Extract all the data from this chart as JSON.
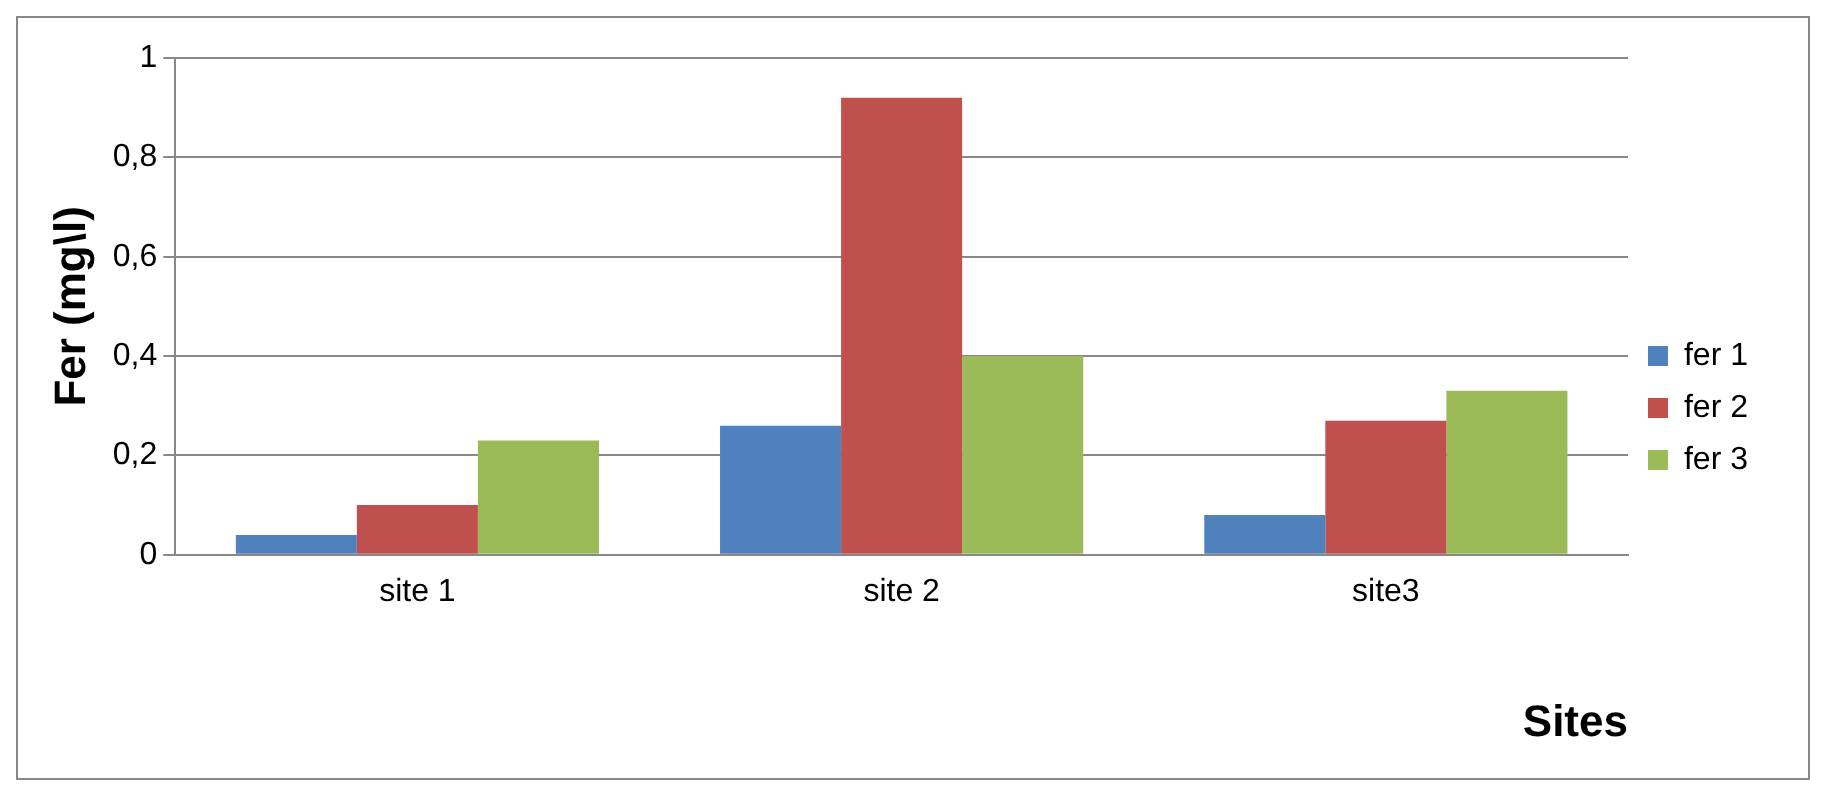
{
  "chart_data": {
    "type": "bar",
    "xlabel": "Sites",
    "ylabel": "Fer (mg\\l)",
    "categories": [
      "site 1",
      "site 2",
      "site3"
    ],
    "series": [
      {
        "name": "fer 1",
        "color": "#4f81bd",
        "values": [
          0.04,
          0.26,
          0.08
        ]
      },
      {
        "name": "fer 2",
        "color": "#c0504d",
        "values": [
          0.1,
          0.92,
          0.27
        ]
      },
      {
        "name": "fer 3",
        "color": "#9bbb59",
        "values": [
          0.23,
          0.4,
          0.33
        ]
      }
    ],
    "ylim": [
      0,
      1
    ],
    "yticks": [
      0,
      {
        "value": 0.2,
        "label": "0,2"
      },
      {
        "value": 0.4,
        "label": "0,4"
      },
      {
        "value": 0.6,
        "label": "0,6"
      },
      {
        "value": 0.8,
        "label": "0,8"
      },
      1
    ],
    "grid": "y",
    "legend": "right"
  }
}
